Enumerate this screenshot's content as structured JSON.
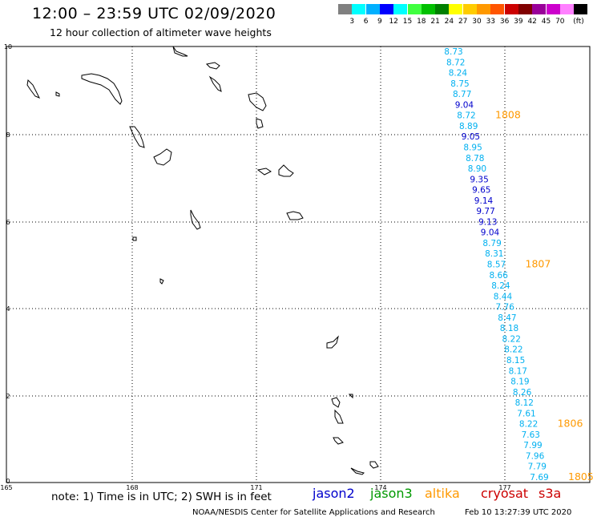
{
  "header": {
    "title": "12:00 – 23:59 UTC 02/09/2020",
    "subtitle": "12 hour collection of altimeter wave heights"
  },
  "colorbar": {
    "unit": "(ft)",
    "colors": [
      "#808080",
      "#00ffff",
      "#00b0ff",
      "#0000ff",
      "#00ffff",
      "#40ff40",
      "#00c000",
      "#008000",
      "#ffff00",
      "#ffcc00",
      "#ff9900",
      "#ff5500",
      "#cc0000",
      "#800000",
      "#990099",
      "#cc00cc",
      "#ff80ff",
      "#000000"
    ],
    "labels": [
      "3",
      "6",
      "9",
      "12",
      "15",
      "18",
      "21",
      "24",
      "27",
      "30",
      "33",
      "36",
      "39",
      "42",
      "45",
      "70"
    ]
  },
  "axes": {
    "x_ticks": [
      "165",
      "168",
      "171",
      "174",
      "177"
    ],
    "y_ticks": [
      "10",
      "8",
      "6",
      "4",
      "2",
      "0"
    ]
  },
  "track": {
    "color_light": "#00b0f0",
    "color_dark": "#0000cc",
    "heights": [
      "8.73",
      "8.72",
      "8.24",
      "8.75",
      "8.77",
      "9.04",
      "8.72",
      "8.89",
      "9.05",
      "8.95",
      "8.78",
      "8.90",
      "9.35",
      "9.65",
      "9.14",
      "9.77",
      "9.13",
      "9.04",
      "8.79",
      "8.31",
      "8.57",
      "8.66",
      "8.24",
      "8.44",
      "7.76",
      "8.47",
      "8.18",
      "8.22",
      "8.22",
      "8.15",
      "8.17",
      "8.19",
      "8.26",
      "8.12",
      "7.61",
      "8.22",
      "7.63",
      "7.99",
      "7.96",
      "7.79",
      "7.69"
    ],
    "times": [
      "1808",
      "1807",
      "1806",
      "1805"
    ],
    "time_color": "#ff9900"
  },
  "footer": {
    "note": "note: 1) Time is in UTC; 2) SWH is in feet",
    "missions": [
      {
        "name": "jason2",
        "color": "#0000cc"
      },
      {
        "name": "jason3",
        "color": "#009900"
      },
      {
        "name": "altika",
        "color": "#ff9900"
      },
      {
        "name": "cryosat",
        "color": "#cc0000"
      },
      {
        "name": "s3a",
        "color": "#cc0000"
      }
    ],
    "credit": "NOAA/NESDIS Center for Satellite Applications and Research",
    "timestamp": "Feb 10 13:27:39 UTC 2020"
  }
}
